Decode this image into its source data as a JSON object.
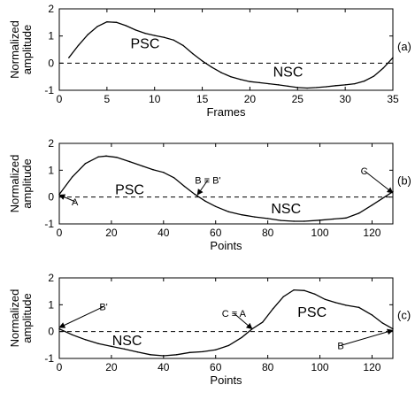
{
  "chart_data": [
    {
      "type": "line",
      "panel_label": "(a)",
      "xlabel": "Frames",
      "ylabel": [
        "Normalized",
        "amplitude"
      ],
      "xlim": [
        0,
        35
      ],
      "ylim": [
        -1,
        2
      ],
      "x_ticks": [
        0,
        5,
        10,
        15,
        20,
        25,
        30,
        35
      ],
      "y_ticks": [
        -1,
        0,
        1,
        2
      ],
      "zero_line": "dashed",
      "series": [
        {
          "x": [
            1,
            2,
            3,
            4,
            5,
            6,
            7,
            8,
            9,
            10,
            11,
            12,
            13,
            14,
            15,
            16,
            17,
            18,
            19,
            20,
            21,
            22,
            23,
            24,
            25,
            26,
            27,
            28,
            29,
            30,
            31,
            32,
            33,
            34,
            35
          ],
          "y": [
            0.2,
            0.65,
            1.05,
            1.35,
            1.52,
            1.5,
            1.38,
            1.22,
            1.1,
            1.02,
            0.95,
            0.85,
            0.65,
            0.35,
            0.08,
            -0.15,
            -0.35,
            -0.5,
            -0.6,
            -0.68,
            -0.72,
            -0.76,
            -0.8,
            -0.85,
            -0.9,
            -0.92,
            -0.9,
            -0.87,
            -0.83,
            -0.8,
            -0.76,
            -0.66,
            -0.48,
            -0.18,
            0.2
          ]
        }
      ],
      "annotations": [
        {
          "text": "PSC",
          "x": 9,
          "y": 0.55
        },
        {
          "text": "NSC",
          "x": 24,
          "y": -0.5
        }
      ]
    },
    {
      "type": "line",
      "panel_label": "(b)",
      "xlabel": "Points",
      "ylabel": [
        "Normalized",
        "amplitude"
      ],
      "xlim": [
        0,
        128
      ],
      "ylim": [
        -1,
        2
      ],
      "x_ticks": [
        0,
        20,
        40,
        60,
        80,
        100,
        120
      ],
      "y_ticks": [
        -1,
        0,
        1,
        2
      ],
      "zero_line": "dashed",
      "series": [
        {
          "x": [
            0,
            5,
            10,
            15,
            18,
            22,
            27,
            32,
            36,
            40,
            44,
            48,
            52,
            56,
            60,
            65,
            70,
            75,
            80,
            85,
            90,
            94,
            100,
            105,
            110,
            115,
            120,
            124,
            128
          ],
          "y": [
            0.1,
            0.75,
            1.25,
            1.5,
            1.53,
            1.48,
            1.32,
            1.15,
            1.02,
            0.92,
            0.72,
            0.4,
            0.1,
            -0.15,
            -0.35,
            -0.55,
            -0.66,
            -0.74,
            -0.8,
            -0.87,
            -0.9,
            -0.9,
            -0.86,
            -0.82,
            -0.78,
            -0.6,
            -0.3,
            -0.05,
            0.2
          ]
        }
      ],
      "annotations": [
        {
          "text": "PSC",
          "x": 27,
          "y": 0.1
        },
        {
          "text": "NSC",
          "x": 87,
          "y": -0.6
        },
        {
          "text": "A",
          "x": 6,
          "y": -0.3,
          "arrow_to": [
            0,
            0.08
          ]
        },
        {
          "text": "B ≡ B'",
          "x": 57,
          "y": 0.5,
          "arrow_to": [
            53,
            0.08
          ]
        },
        {
          "text": "C",
          "x": 117,
          "y": 0.85,
          "arrow_to": [
            128,
            0.15
          ]
        }
      ]
    },
    {
      "type": "line",
      "panel_label": "(c)",
      "xlabel": "Points",
      "ylabel": [
        "Normalized",
        "amplitude"
      ],
      "xlim": [
        0,
        128
      ],
      "ylim": [
        -1,
        2
      ],
      "x_ticks": [
        0,
        20,
        40,
        60,
        80,
        100,
        120
      ],
      "y_ticks": [
        -1,
        0,
        1,
        2
      ],
      "zero_line": "dashed",
      "series": [
        {
          "x": [
            0,
            5,
            10,
            15,
            20,
            25,
            30,
            35,
            40,
            45,
            50,
            55,
            60,
            65,
            70,
            74,
            78,
            82,
            86,
            90,
            94,
            98,
            102,
            106,
            110,
            115,
            120,
            124,
            128
          ],
          "y": [
            0.1,
            -0.12,
            -0.3,
            -0.45,
            -0.55,
            -0.65,
            -0.76,
            -0.86,
            -0.9,
            -0.86,
            -0.78,
            -0.75,
            -0.68,
            -0.52,
            -0.22,
            0.1,
            0.35,
            0.85,
            1.3,
            1.55,
            1.53,
            1.4,
            1.2,
            1.08,
            0.98,
            0.9,
            0.62,
            0.32,
            0.1
          ]
        }
      ],
      "annotations": [
        {
          "text": "PSC",
          "x": 97,
          "y": 0.55
        },
        {
          "text": "NSC",
          "x": 26,
          "y": -0.5
        },
        {
          "text": "B'",
          "x": 17,
          "y": 0.8,
          "arrow_to": [
            0,
            0.15
          ]
        },
        {
          "text": "C ≡ A",
          "x": 67,
          "y": 0.55,
          "arrow_to": [
            74,
            0.1
          ]
        },
        {
          "text": "B",
          "x": 108,
          "y": -0.65,
          "arrow_to": [
            128,
            0.05
          ]
        }
      ]
    }
  ]
}
